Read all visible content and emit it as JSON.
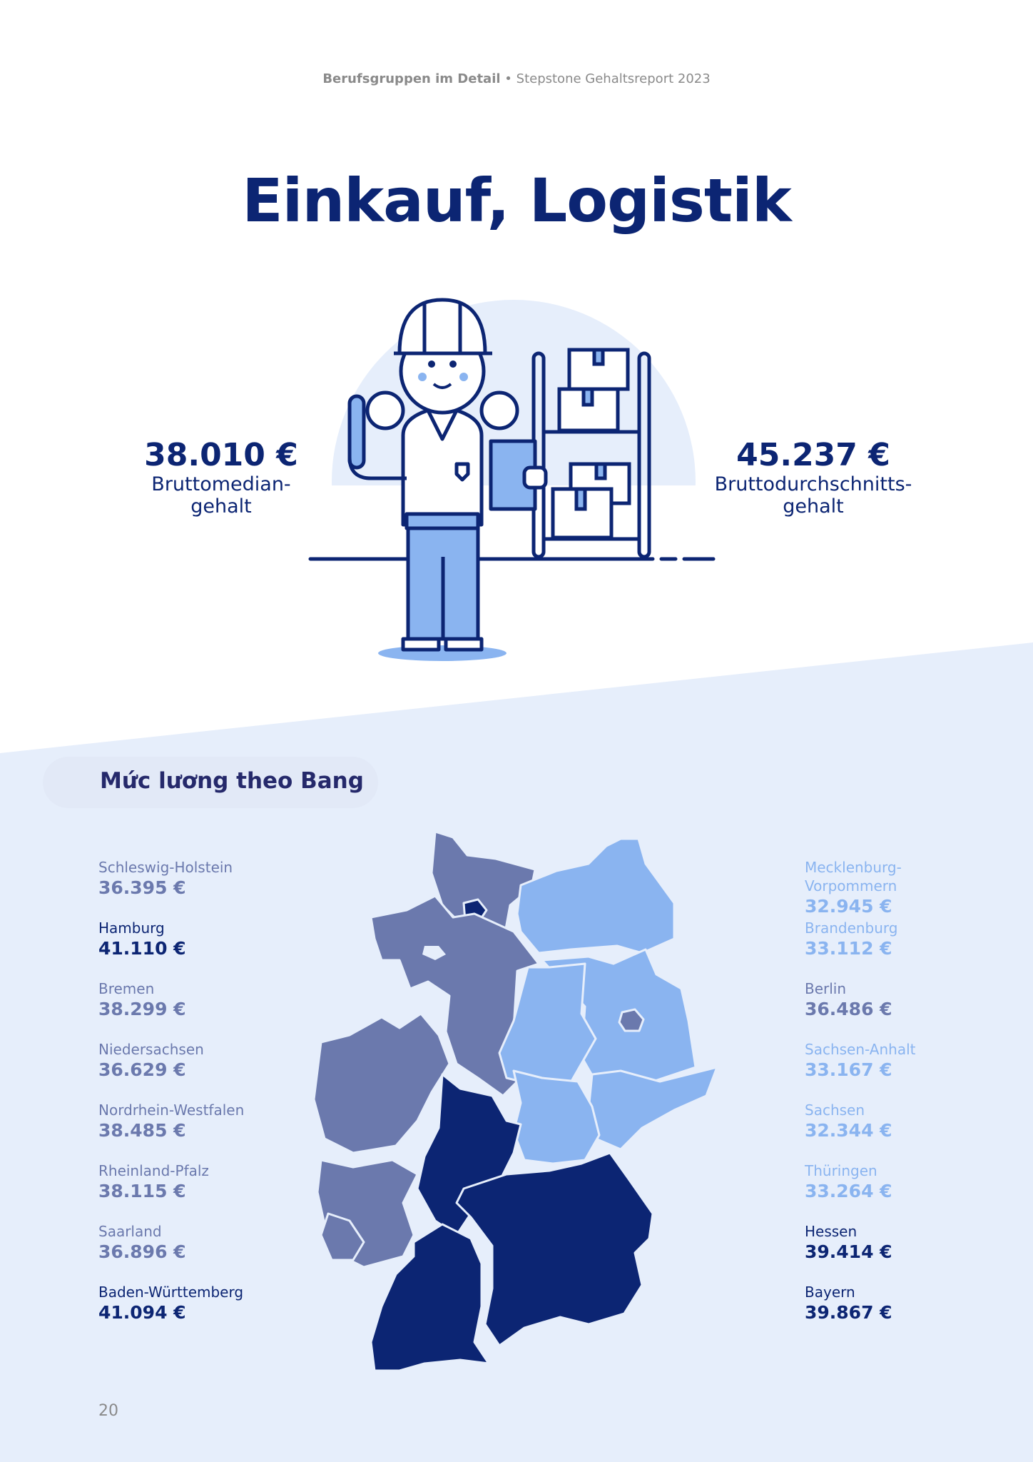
{
  "header": {
    "section": "Berufsgruppen im Detail",
    "separator": "•",
    "report": "Stepstone Gehaltsreport 2023"
  },
  "title": "Einkauf, Logistik",
  "stats": {
    "median": {
      "value": "38.010 €",
      "label_line1": "Bruttomedian-",
      "label_line2": "gehalt"
    },
    "average": {
      "value": "45.237 €",
      "label_line1": "Bruttodurchschnitts-",
      "label_line2": "gehalt"
    }
  },
  "section_title": "Mức lương theo Bang",
  "colors": {
    "dark": "#0c2573",
    "mid": "#6b79ad",
    "light": "#8ab4f0",
    "background": "#e6eefb"
  },
  "states_left": [
    {
      "name": "Schleswig-Holstein",
      "value": "36.395 €",
      "tier": "mid"
    },
    {
      "name": "Hamburg",
      "value": "41.110 €",
      "tier": "dark"
    },
    {
      "name": "Bremen",
      "value": "38.299 €",
      "tier": "mid"
    },
    {
      "name": "Niedersachsen",
      "value": "36.629 €",
      "tier": "mid"
    },
    {
      "name": "Nordrhein-Westfalen",
      "value": "38.485 €",
      "tier": "mid"
    },
    {
      "name": "Rheinland-Pfalz",
      "value": "38.115 €",
      "tier": "mid"
    },
    {
      "name": "Saarland",
      "value": "36.896 €",
      "tier": "mid"
    },
    {
      "name": "Baden-Württemberg",
      "value": "41.094 €",
      "tier": "dark"
    }
  ],
  "states_right": [
    {
      "name": "Mecklenburg-\nVorpommern",
      "value": "32.945 €",
      "tier": "light"
    },
    {
      "name": "Brandenburg",
      "value": "33.112 €",
      "tier": "light"
    },
    {
      "name": "Berlin",
      "value": "36.486 €",
      "tier": "mid"
    },
    {
      "name": "Sachsen-Anhalt",
      "value": "33.167 €",
      "tier": "light"
    },
    {
      "name": "Sachsen",
      "value": "32.344 €",
      "tier": "light"
    },
    {
      "name": "Thüringen",
      "value": "33.264 €",
      "tier": "light"
    },
    {
      "name": "Hessen",
      "value": "39.414 €",
      "tier": "dark"
    },
    {
      "name": "Bayern",
      "value": "39.867 €",
      "tier": "dark"
    }
  ],
  "page_number": "20"
}
